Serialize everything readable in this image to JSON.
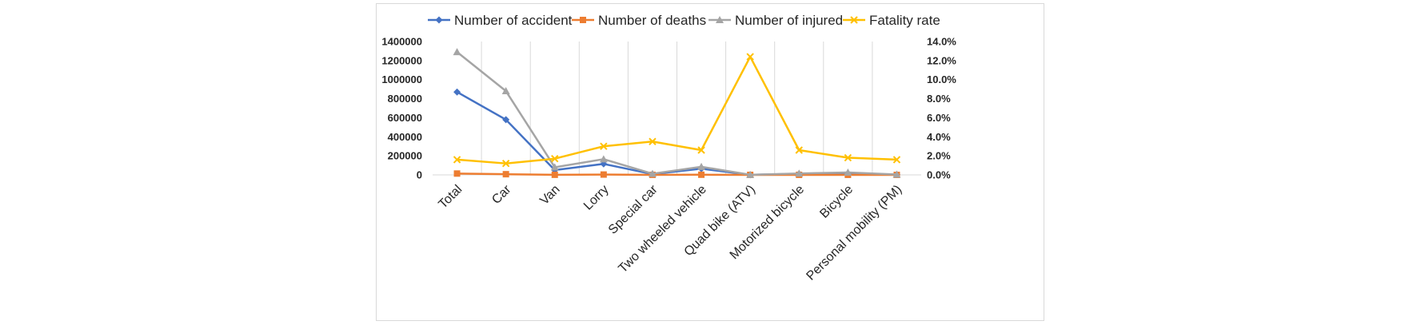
{
  "chart_data": {
    "type": "line",
    "title": "",
    "xlabel": "",
    "ylabel": "",
    "legend_position": "top",
    "grid": {
      "vertical": true,
      "horizontal": false
    },
    "categories": [
      "Total",
      "Car",
      "Van",
      "Lorry",
      "Special car",
      "Two wheeled vehicle",
      "Quad bike (ATV)",
      "Motorized bicycle",
      "Bicycle",
      "Personal mobility (PM)"
    ],
    "ylim_left": [
      0,
      1400000
    ],
    "yticks_left": [
      "0",
      "200000",
      "400000",
      "600000",
      "800000",
      "1000000",
      "1200000",
      "1400000"
    ],
    "ylim_right": [
      0,
      0.14
    ],
    "yticks_right": [
      "0.0%",
      "2.0%",
      "4.0%",
      "6.0%",
      "8.0%",
      "10.0%",
      "12.0%",
      "14.0%"
    ],
    "series": [
      {
        "name": "Number of accident",
        "axis": "left",
        "color": "#4472C4",
        "marker": "diamond",
        "values": [
          870000,
          580000,
          50000,
          115000,
          8000,
          65000,
          1000,
          10000,
          15000,
          3000
        ]
      },
      {
        "name": "Number of deaths",
        "axis": "left",
        "color": "#ED7D31",
        "marker": "square",
        "values": [
          14000,
          7000,
          1000,
          3500,
          300,
          1700,
          120,
          250,
          300,
          50
        ]
      },
      {
        "name": "Number of injured",
        "axis": "left",
        "color": "#A5A5A5",
        "marker": "triangle",
        "values": [
          1290000,
          880000,
          80000,
          165000,
          12000,
          85000,
          1500,
          15000,
          25000,
          4000
        ]
      },
      {
        "name": "Fatality rate",
        "axis": "right",
        "color": "#FFC000",
        "marker": "x",
        "values": [
          0.016,
          0.012,
          0.017,
          0.03,
          0.035,
          0.026,
          0.124,
          0.026,
          0.018,
          0.016
        ]
      }
    ]
  }
}
